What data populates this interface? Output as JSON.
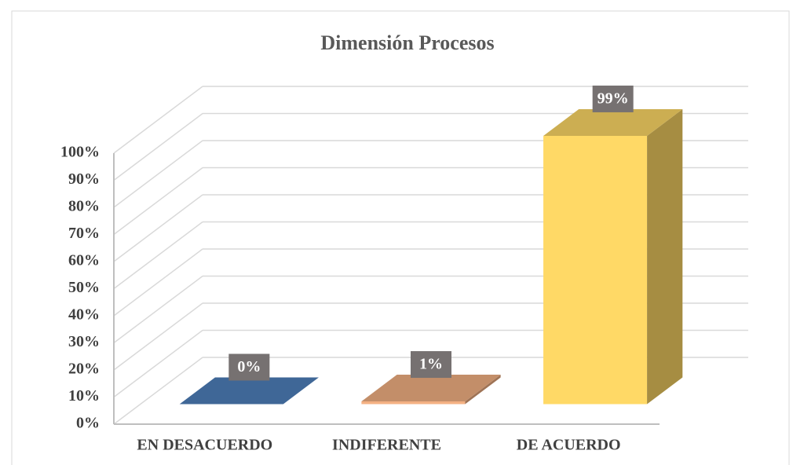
{
  "chart_data": {
    "type": "bar3d",
    "title": "Dimensión Procesos",
    "categories": [
      "EN DESACUERDO",
      "INDIFERENTE",
      "DE ACUERDO"
    ],
    "values": [
      0,
      1,
      99
    ],
    "value_labels": [
      "0%",
      "1%",
      "99%"
    ],
    "colors": [
      "#4f81bd",
      "#f4b183",
      "#ffd966"
    ],
    "ylim": [
      0,
      100
    ],
    "yticks": [
      {
        "value": 0,
        "label": "0%"
      },
      {
        "value": 10,
        "label": "10%"
      },
      {
        "value": 20,
        "label": "20%"
      },
      {
        "value": 30,
        "label": "30%"
      },
      {
        "value": 40,
        "label": "40%"
      },
      {
        "value": 50,
        "label": "50%"
      },
      {
        "value": 60,
        "label": "60%"
      },
      {
        "value": 70,
        "label": "70%"
      },
      {
        "value": 80,
        "label": "80%"
      },
      {
        "value": 90,
        "label": "90%"
      },
      {
        "value": 100,
        "label": "100%"
      }
    ],
    "grid": true
  }
}
